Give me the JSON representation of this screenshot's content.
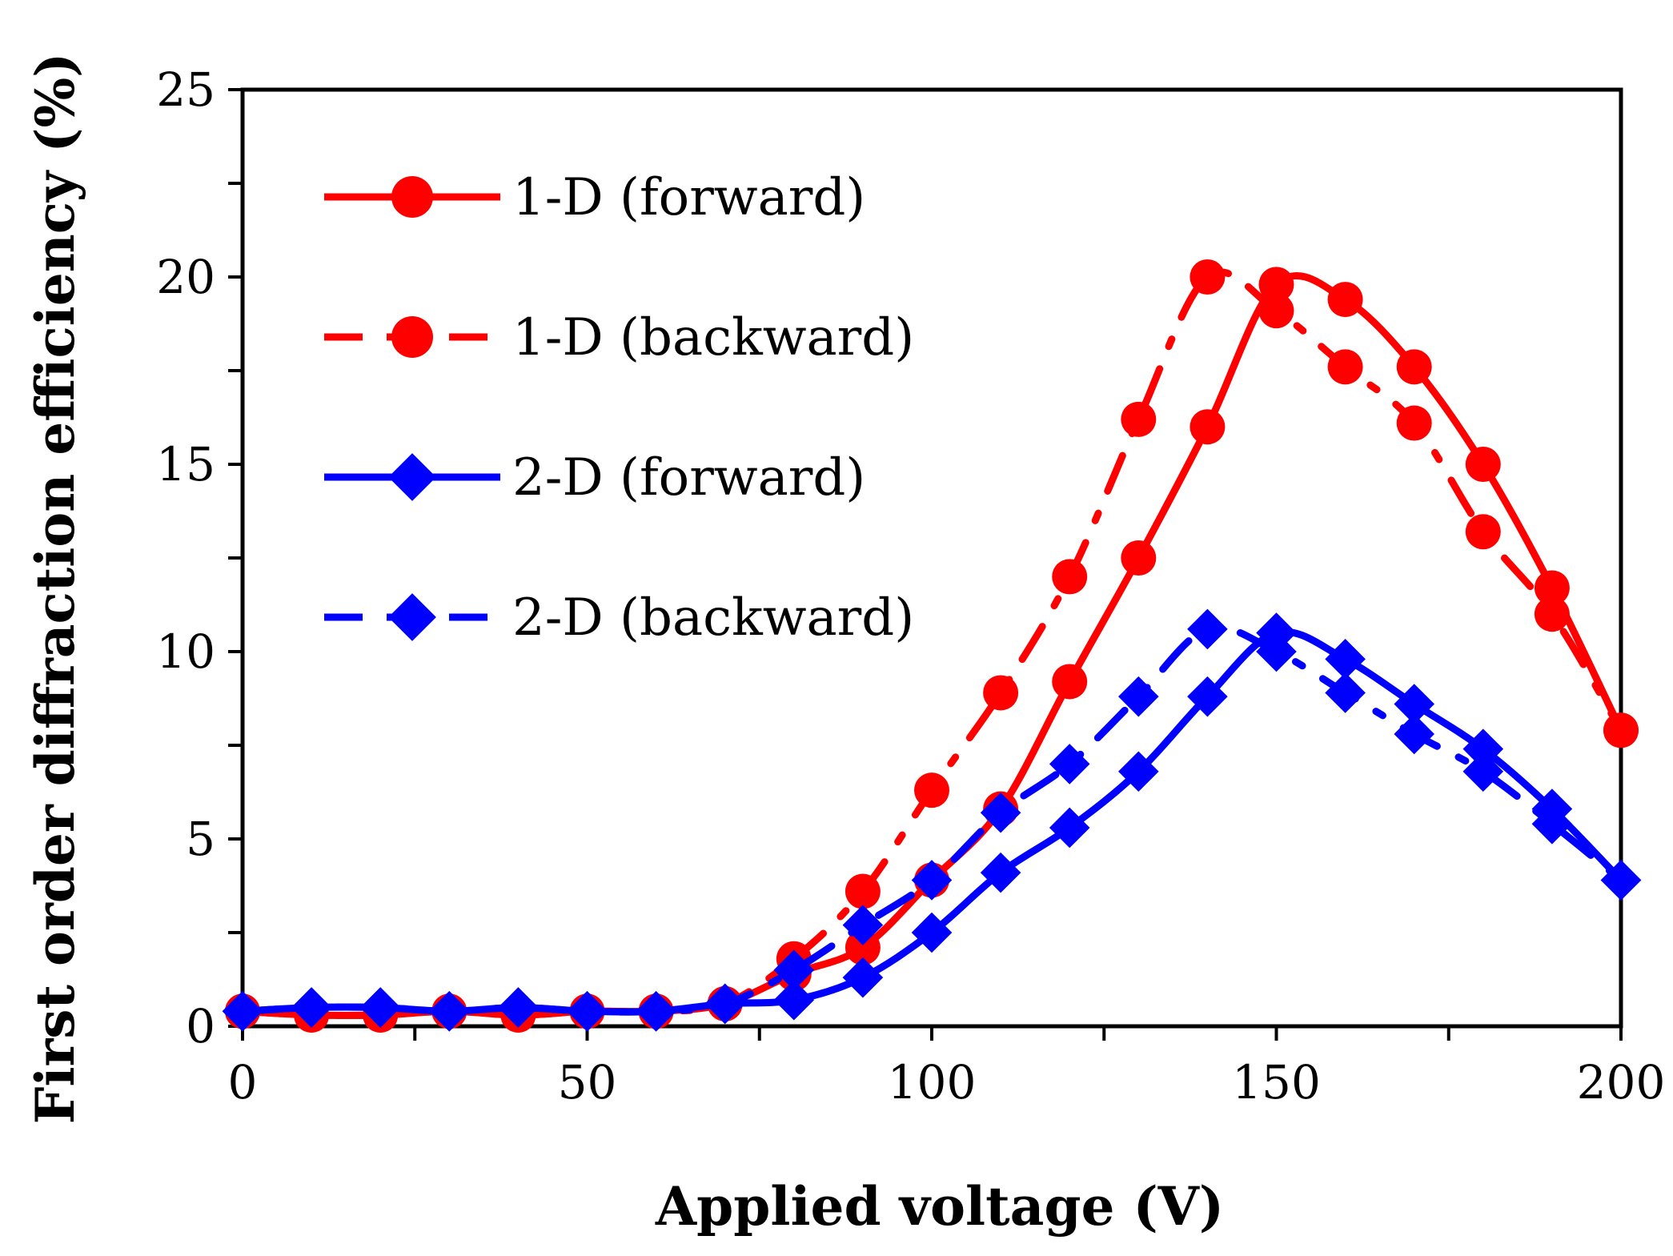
{
  "chart_data": {
    "type": "line",
    "title": "",
    "xlabel": "Applied voltage (V)",
    "ylabel": "First order diffraction efficiency (%)",
    "xlim": [
      0,
      200
    ],
    "ylim": [
      0,
      25
    ],
    "xticks": [
      "0",
      "50",
      "100",
      "150",
      "200"
    ],
    "yticks": [
      "0",
      "5",
      "10",
      "15",
      "20",
      "25"
    ],
    "grid": false,
    "legend_position": "top-left",
    "x": [
      0,
      10,
      20,
      30,
      40,
      50,
      60,
      70,
      80,
      90,
      100,
      110,
      120,
      130,
      140,
      150,
      160,
      170,
      180,
      190,
      200
    ],
    "series": [
      {
        "name": "1-D (forward)",
        "color": "#ff0000",
        "line": "solid",
        "marker": "circle",
        "values": [
          0.4,
          0.3,
          0.3,
          0.4,
          0.3,
          0.4,
          0.4,
          0.6,
          1.4,
          2.1,
          3.9,
          5.8,
          9.2,
          12.5,
          16.0,
          19.8,
          19.4,
          17.6,
          15.0,
          11.7,
          7.9
        ]
      },
      {
        "name": "1-D (backward)",
        "color": "#ff0000",
        "line": "dashed",
        "marker": "circle",
        "values": [
          0.4,
          0.3,
          0.3,
          0.4,
          0.3,
          0.4,
          0.4,
          0.6,
          1.8,
          3.6,
          6.3,
          8.9,
          12.0,
          16.2,
          20.0,
          19.1,
          17.6,
          16.1,
          13.2,
          11.0,
          7.9
        ]
      },
      {
        "name": "2-D (forward)",
        "color": "#0000ff",
        "line": "solid",
        "marker": "diamond",
        "values": [
          0.4,
          0.5,
          0.5,
          0.4,
          0.5,
          0.4,
          0.4,
          0.6,
          0.7,
          1.3,
          2.5,
          4.1,
          5.3,
          6.8,
          8.8,
          10.5,
          9.8,
          8.6,
          7.4,
          5.8,
          3.9
        ]
      },
      {
        "name": "2-D (backward)",
        "color": "#0000ff",
        "line": "dashed",
        "marker": "diamond",
        "values": [
          0.4,
          0.5,
          0.5,
          0.4,
          0.5,
          0.4,
          0.4,
          0.6,
          1.5,
          2.7,
          3.9,
          5.7,
          7.0,
          8.8,
          10.6,
          10.0,
          8.9,
          7.8,
          6.8,
          5.4,
          3.9
        ]
      }
    ]
  }
}
